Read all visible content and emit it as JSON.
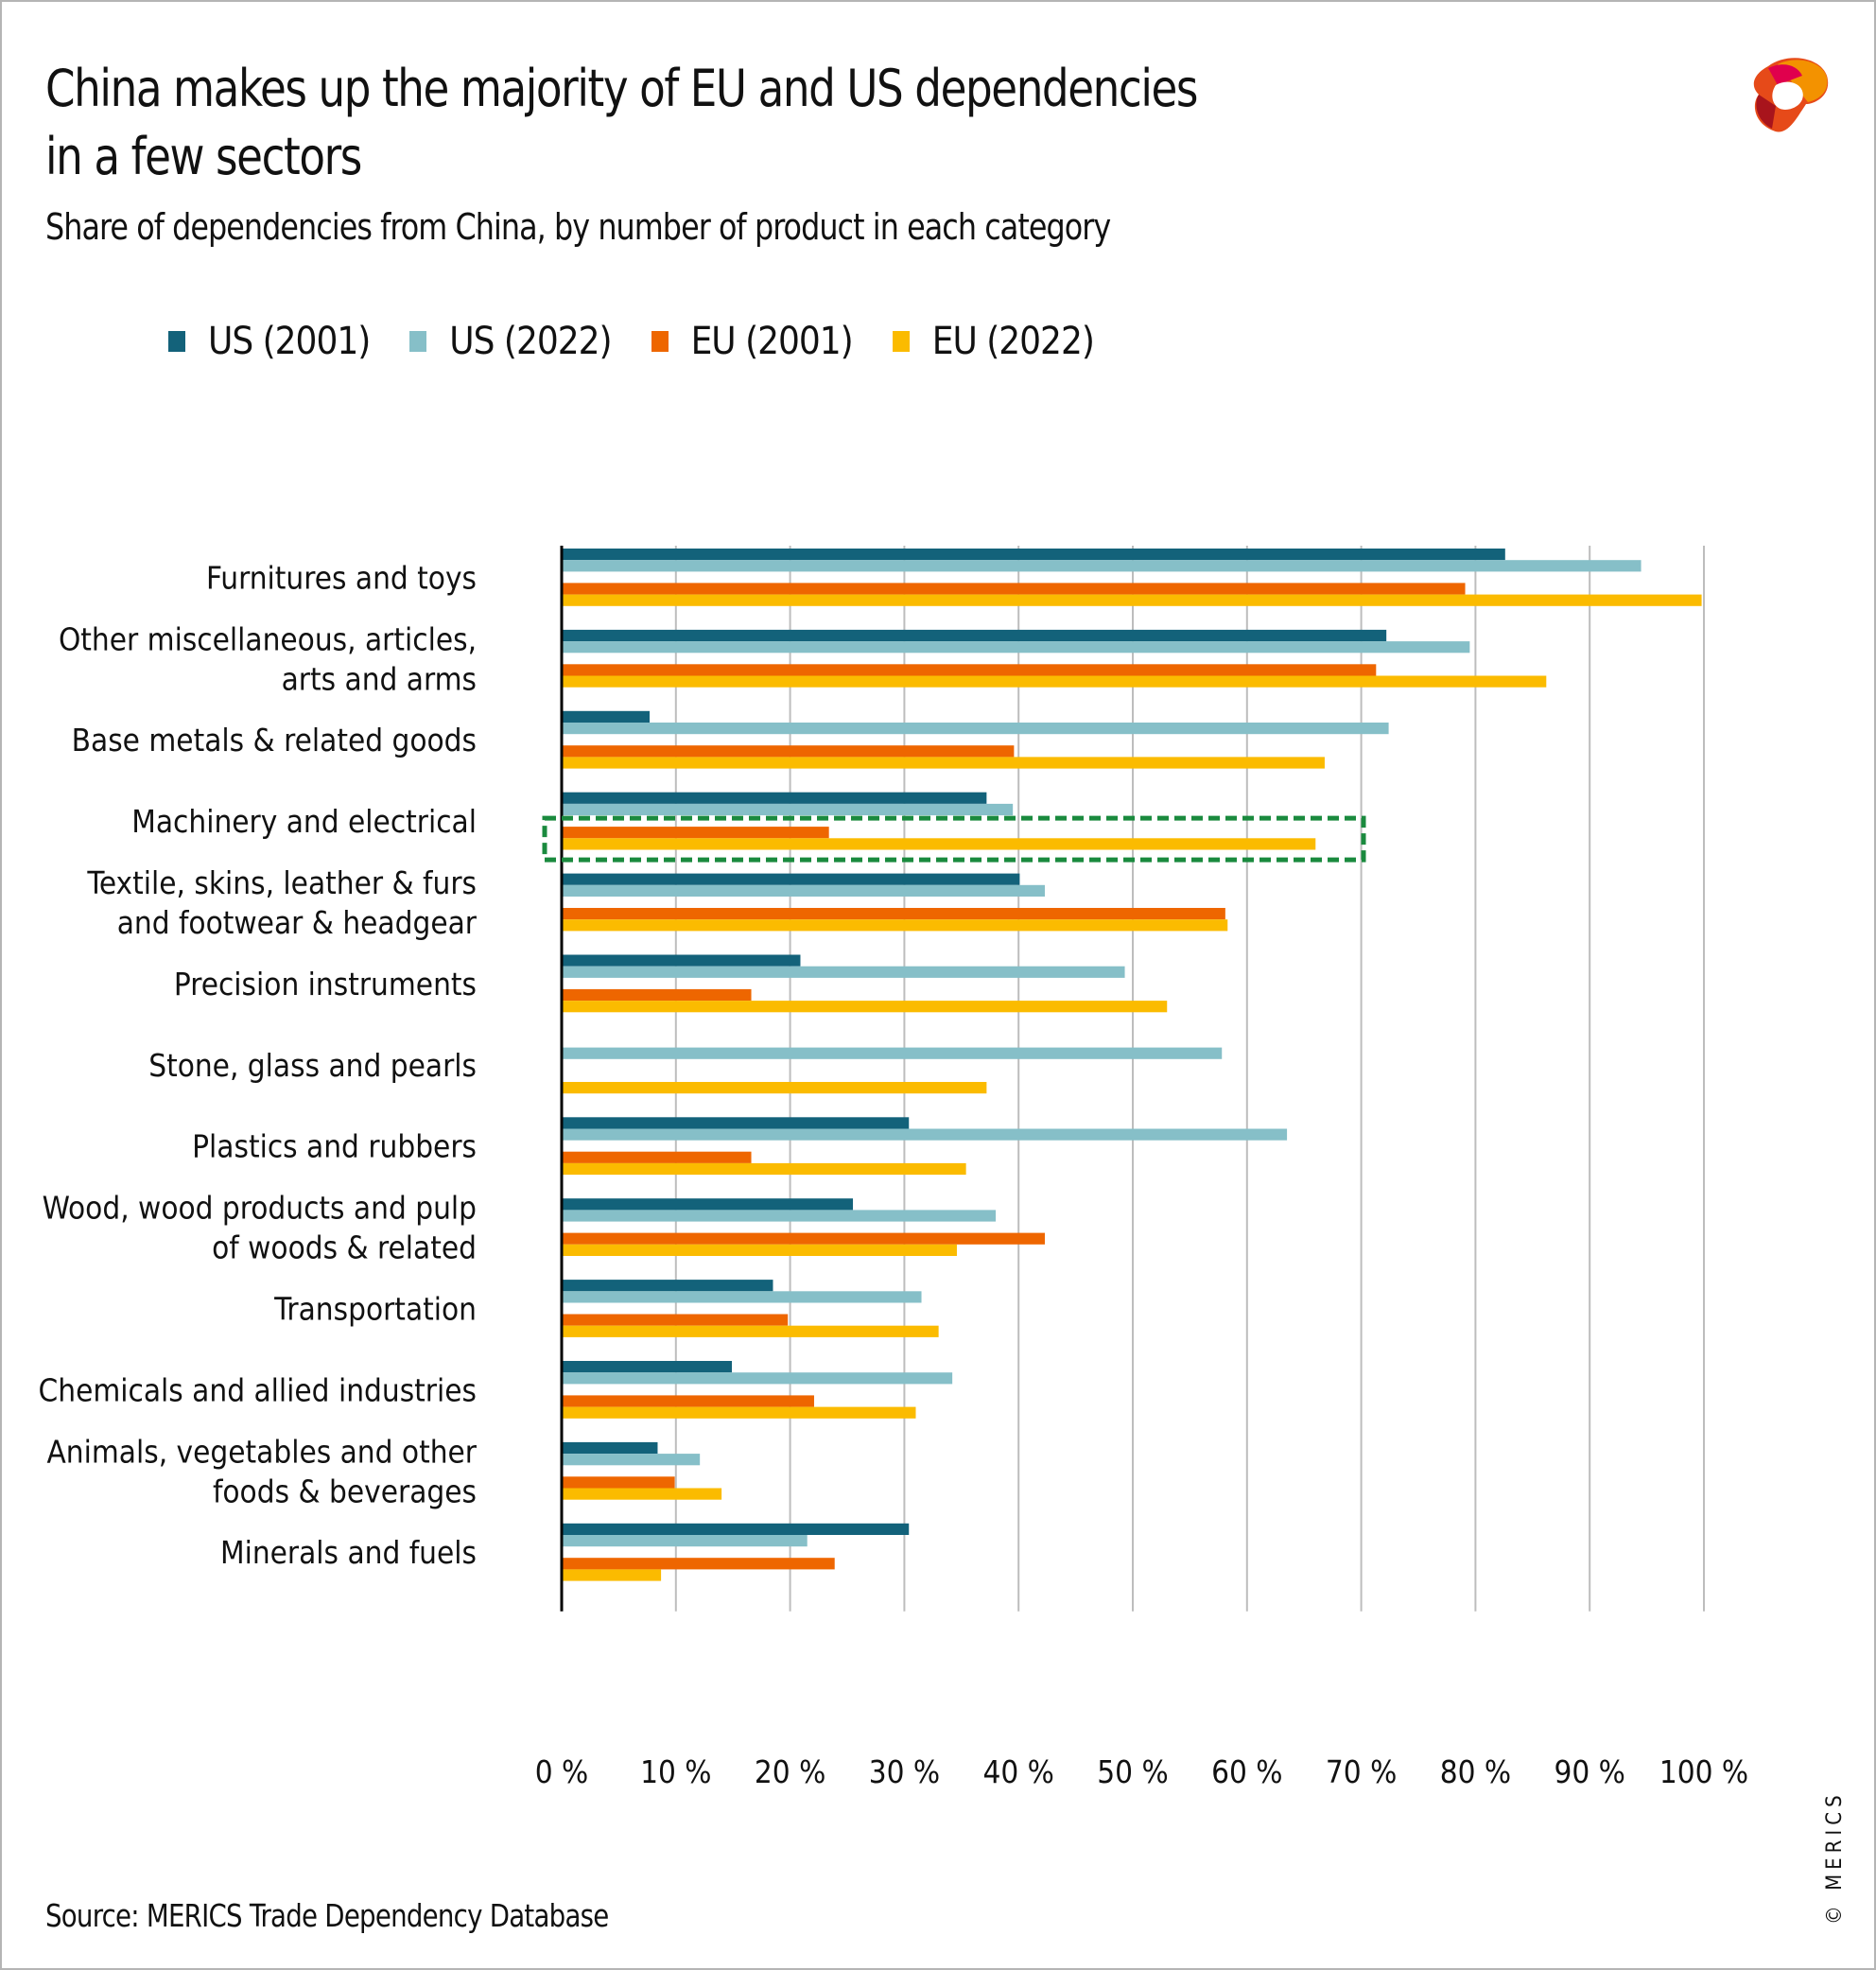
{
  "header": {
    "title": "China makes up the majority of EU and US dependencies\nin a few sectors",
    "subtitle": "Share of dependencies from China, by number of product in each category"
  },
  "logo": {
    "icon": "merics-logo-icon"
  },
  "footer": {
    "source": "Source: MERICS Trade Dependency Database",
    "copyright": "© MERICS"
  },
  "colors": {
    "US (2001)": "#13627a",
    "US (2022)": "#86bfc8",
    "EU (2001)": "#ee6600",
    "EU (2022)": "#fbbb00",
    "highlight": "#1a8a3e",
    "grid": "#bdbdbd",
    "axis": "#000000"
  },
  "chart_data": {
    "type": "bar",
    "orientation": "horizontal",
    "title": "China makes up the majority of EU and US dependencies in a few sectors",
    "subtitle": "Share of dependencies from China, by number of product in each category",
    "xlabel": "",
    "ylabel": "",
    "xlim": [
      0,
      100
    ],
    "x_ticks": [
      "0 %",
      "10 %",
      "20 %",
      "30 %",
      "40 %",
      "50 %",
      "60 %",
      "70 %",
      "80 %",
      "90 %",
      "100 %"
    ],
    "grid": true,
    "legend_position": "top-left",
    "categories": [
      "Furnitures and toys",
      "Other miscellaneous, articles,\narts and arms",
      "Base metals & related goods",
      "Machinery and electrical",
      "Textile, skins, leather & furs\nand footwear & headgear",
      "Precision instruments",
      "Stone, glass and pearls",
      "Plastics and rubbers",
      "Wood, wood products and pulp\nof woods & related",
      "Transportation",
      "Chemicals and allied industries",
      "Animals, vegetables and other\nfoods & beverages",
      "Minerals and fuels"
    ],
    "series": [
      {
        "name": "US (2001)",
        "values": [
          82.6,
          72.2,
          7.7,
          37.2,
          40.1,
          20.9,
          0,
          30.4,
          25.5,
          18.5,
          14.9,
          8.4,
          30.4
        ]
      },
      {
        "name": "US (2022)",
        "values": [
          94.5,
          79.5,
          72.4,
          39.5,
          42.3,
          49.3,
          57.8,
          63.5,
          38.0,
          31.5,
          34.2,
          12.1,
          21.5
        ]
      },
      {
        "name": "EU (2001)",
        "values": [
          79.1,
          71.3,
          39.6,
          23.4,
          58.1,
          16.6,
          0,
          16.6,
          42.3,
          19.8,
          22.1,
          9.9,
          23.9
        ]
      },
      {
        "name": "EU (2022)",
        "values": [
          99.8,
          86.2,
          66.8,
          66.0,
          58.3,
          53.0,
          37.2,
          35.4,
          34.6,
          33.0,
          31.0,
          14.0,
          8.7
        ]
      }
    ],
    "annotations": [
      {
        "type": "dashed-highlight-box",
        "category": "Machinery and electrical",
        "series": [
          "EU (2001)",
          "EU (2022)"
        ]
      }
    ]
  }
}
